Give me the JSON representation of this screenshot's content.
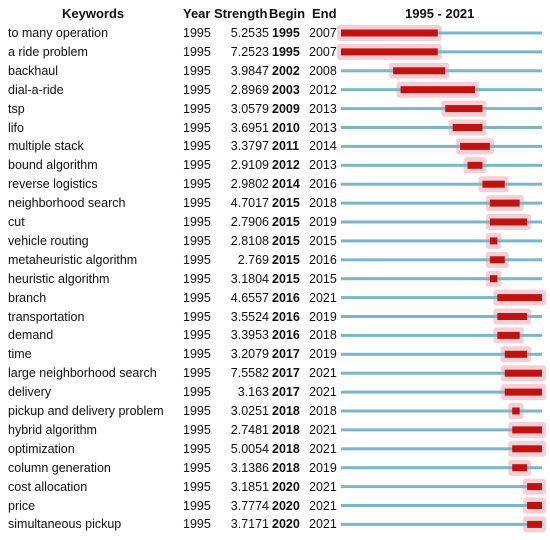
{
  "headers": {
    "keywords": "Keywords",
    "year": "Year",
    "strength": "Strength",
    "begin": "Begin",
    "end": "End",
    "range": "1995 - 2021"
  },
  "colors": {
    "baseline": "#7ab8c9",
    "burst": "#c0120f",
    "halo": "#f7cdd6"
  },
  "chart_data": {
    "type": "table",
    "year_range": [
      1995,
      2021
    ],
    "rows": [
      {
        "keyword": "to many operation",
        "year": "1995",
        "strength": "5.2535",
        "begin": "1995",
        "end": "2007"
      },
      {
        "keyword": "a ride problem",
        "year": "1995",
        "strength": "7.2523",
        "begin": "1995",
        "end": "2007"
      },
      {
        "keyword": "backhaul",
        "year": "1995",
        "strength": "3.9847",
        "begin": "2002",
        "end": "2008"
      },
      {
        "keyword": "dial-a-ride",
        "year": "1995",
        "strength": "2.8969",
        "begin": "2003",
        "end": "2012"
      },
      {
        "keyword": "tsp",
        "year": "1995",
        "strength": "3.0579",
        "begin": "2009",
        "end": "2013"
      },
      {
        "keyword": "lifo",
        "year": "1995",
        "strength": "3.6951",
        "begin": "2010",
        "end": "2013"
      },
      {
        "keyword": "multiple stack",
        "year": "1995",
        "strength": "3.3797",
        "begin": "2011",
        "end": "2014"
      },
      {
        "keyword": "bound algorithm",
        "year": "1995",
        "strength": "2.9109",
        "begin": "2012",
        "end": "2013"
      },
      {
        "keyword": "reverse logistics",
        "year": "1995",
        "strength": "2.9802",
        "begin": "2014",
        "end": "2016"
      },
      {
        "keyword": "neighborhood search",
        "year": "1995",
        "strength": "4.7017",
        "begin": "2015",
        "end": "2018"
      },
      {
        "keyword": "cut",
        "year": "1995",
        "strength": "2.7906",
        "begin": "2015",
        "end": "2019"
      },
      {
        "keyword": "vehicle routing",
        "year": "1995",
        "strength": "2.8108",
        "begin": "2015",
        "end": "2015"
      },
      {
        "keyword": "metaheuristic algorithm",
        "year": "1995",
        "strength": "2.769",
        "begin": "2015",
        "end": "2016"
      },
      {
        "keyword": "heuristic algorithm",
        "year": "1995",
        "strength": "3.1804",
        "begin": "2015",
        "end": "2015"
      },
      {
        "keyword": "branch",
        "year": "1995",
        "strength": "4.6557",
        "begin": "2016",
        "end": "2021"
      },
      {
        "keyword": "transportation",
        "year": "1995",
        "strength": "3.5524",
        "begin": "2016",
        "end": "2019"
      },
      {
        "keyword": "demand",
        "year": "1995",
        "strength": "3.3953",
        "begin": "2016",
        "end": "2018"
      },
      {
        "keyword": "time",
        "year": "1995",
        "strength": "3.2079",
        "begin": "2017",
        "end": "2019"
      },
      {
        "keyword": "large neighborhood search",
        "year": "1995",
        "strength": "7.5582",
        "begin": "2017",
        "end": "2021"
      },
      {
        "keyword": "delivery",
        "year": "1995",
        "strength": "3.163",
        "begin": "2017",
        "end": "2021"
      },
      {
        "keyword": "pickup and delivery problem",
        "year": "1995",
        "strength": "3.0251",
        "begin": "2018",
        "end": "2018"
      },
      {
        "keyword": "hybrid algorithm",
        "year": "1995",
        "strength": "2.7481",
        "begin": "2018",
        "end": "2021"
      },
      {
        "keyword": "optimization",
        "year": "1995",
        "strength": "5.0054",
        "begin": "2018",
        "end": "2021"
      },
      {
        "keyword": "column generation",
        "year": "1995",
        "strength": "3.1386",
        "begin": "2018",
        "end": "2019"
      },
      {
        "keyword": "cost allocation",
        "year": "1995",
        "strength": "3.1851",
        "begin": "2020",
        "end": "2021"
      },
      {
        "keyword": "price",
        "year": "1995",
        "strength": "3.7774",
        "begin": "2020",
        "end": "2021"
      },
      {
        "keyword": "simultaneous pickup",
        "year": "1995",
        "strength": "3.7171",
        "begin": "2020",
        "end": "2021"
      }
    ]
  }
}
